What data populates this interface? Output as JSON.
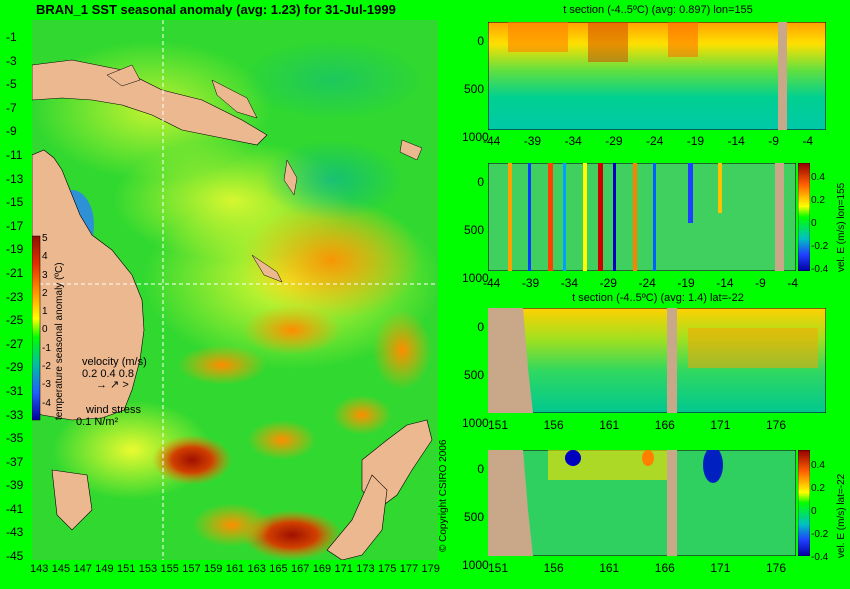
{
  "map": {
    "title": "BRAN_1 SST seasonal anomaly (avg: 1.23) for 31-Jul-1999",
    "lat_ticks": [
      "-1",
      "-3",
      "-5",
      "-7",
      "-9",
      "-11",
      "-13",
      "-15",
      "-17",
      "-19",
      "-21",
      "-23",
      "-25",
      "-27",
      "-29",
      "-31",
      "-33",
      "-35",
      "-37",
      "-39",
      "-41",
      "-43",
      "-45"
    ],
    "lon_ticks": [
      "143",
      "145",
      "147",
      "149",
      "151",
      "153",
      "155",
      "157",
      "159",
      "161",
      "163",
      "165",
      "167",
      "169",
      "171",
      "173",
      "175",
      "177",
      "179"
    ],
    "colorbar": {
      "label": "temperature seasonal anomaly (ºC)",
      "ticks": [
        "5",
        "4",
        "3",
        "2",
        "1",
        "0",
        "-1",
        "-2",
        "-3",
        "-4"
      ],
      "range": [
        -4,
        5
      ]
    },
    "velocity_legend": {
      "title": "velocity (m/s)",
      "values": "0.2 0.4 0.8"
    },
    "wind_legend": {
      "title": "wind stress",
      "value": "0.1 N/m²"
    },
    "crosshair": {
      "lon": 155,
      "lat": -22
    }
  },
  "copyright": "© Copyright CSIRO 2006",
  "sections": [
    {
      "title": "t section (-4..5ºC) (avg: 0.897) lon=155",
      "x_ticks": [
        "-44",
        "-39",
        "-34",
        "-29",
        "-24",
        "-19",
        "-14",
        "-9",
        "-4"
      ],
      "y_ticks": [
        "0",
        "500",
        "1000"
      ]
    },
    {
      "title": "",
      "side_label": "vel. E (m/s) lon=155",
      "x_ticks": [
        "-44",
        "-39",
        "-34",
        "-29",
        "-24",
        "-19",
        "-14",
        "-9",
        "-4"
      ],
      "y_ticks": [
        "0",
        "500",
        "1000"
      ],
      "colorbar_ticks": [
        "0.4",
        "0.2",
        "0",
        "-0.2",
        "-0.4"
      ]
    },
    {
      "title": "t section (-4..5ºC) (avg: 1.4) lat=-22",
      "x_ticks": [
        "151",
        "156",
        "161",
        "166",
        "171",
        "176"
      ],
      "y_ticks": [
        "0",
        "500",
        "1000"
      ]
    },
    {
      "title": "",
      "side_label": "vel. E (m/s) lat=-22",
      "x_ticks": [
        "151",
        "156",
        "161",
        "166",
        "171",
        "176"
      ],
      "y_ticks": [
        "0",
        "500",
        "1000"
      ],
      "colorbar_ticks": [
        "0.4",
        "0.2",
        "0",
        "-0.2",
        "-0.4"
      ]
    }
  ],
  "colors": {
    "background": "#00ff00",
    "land": "#ebb88f",
    "section_land": "#c8a888",
    "warm": "#ffa500",
    "hot": "#b02000",
    "cool": "#00c8a0",
    "cold": "#0000c8"
  }
}
